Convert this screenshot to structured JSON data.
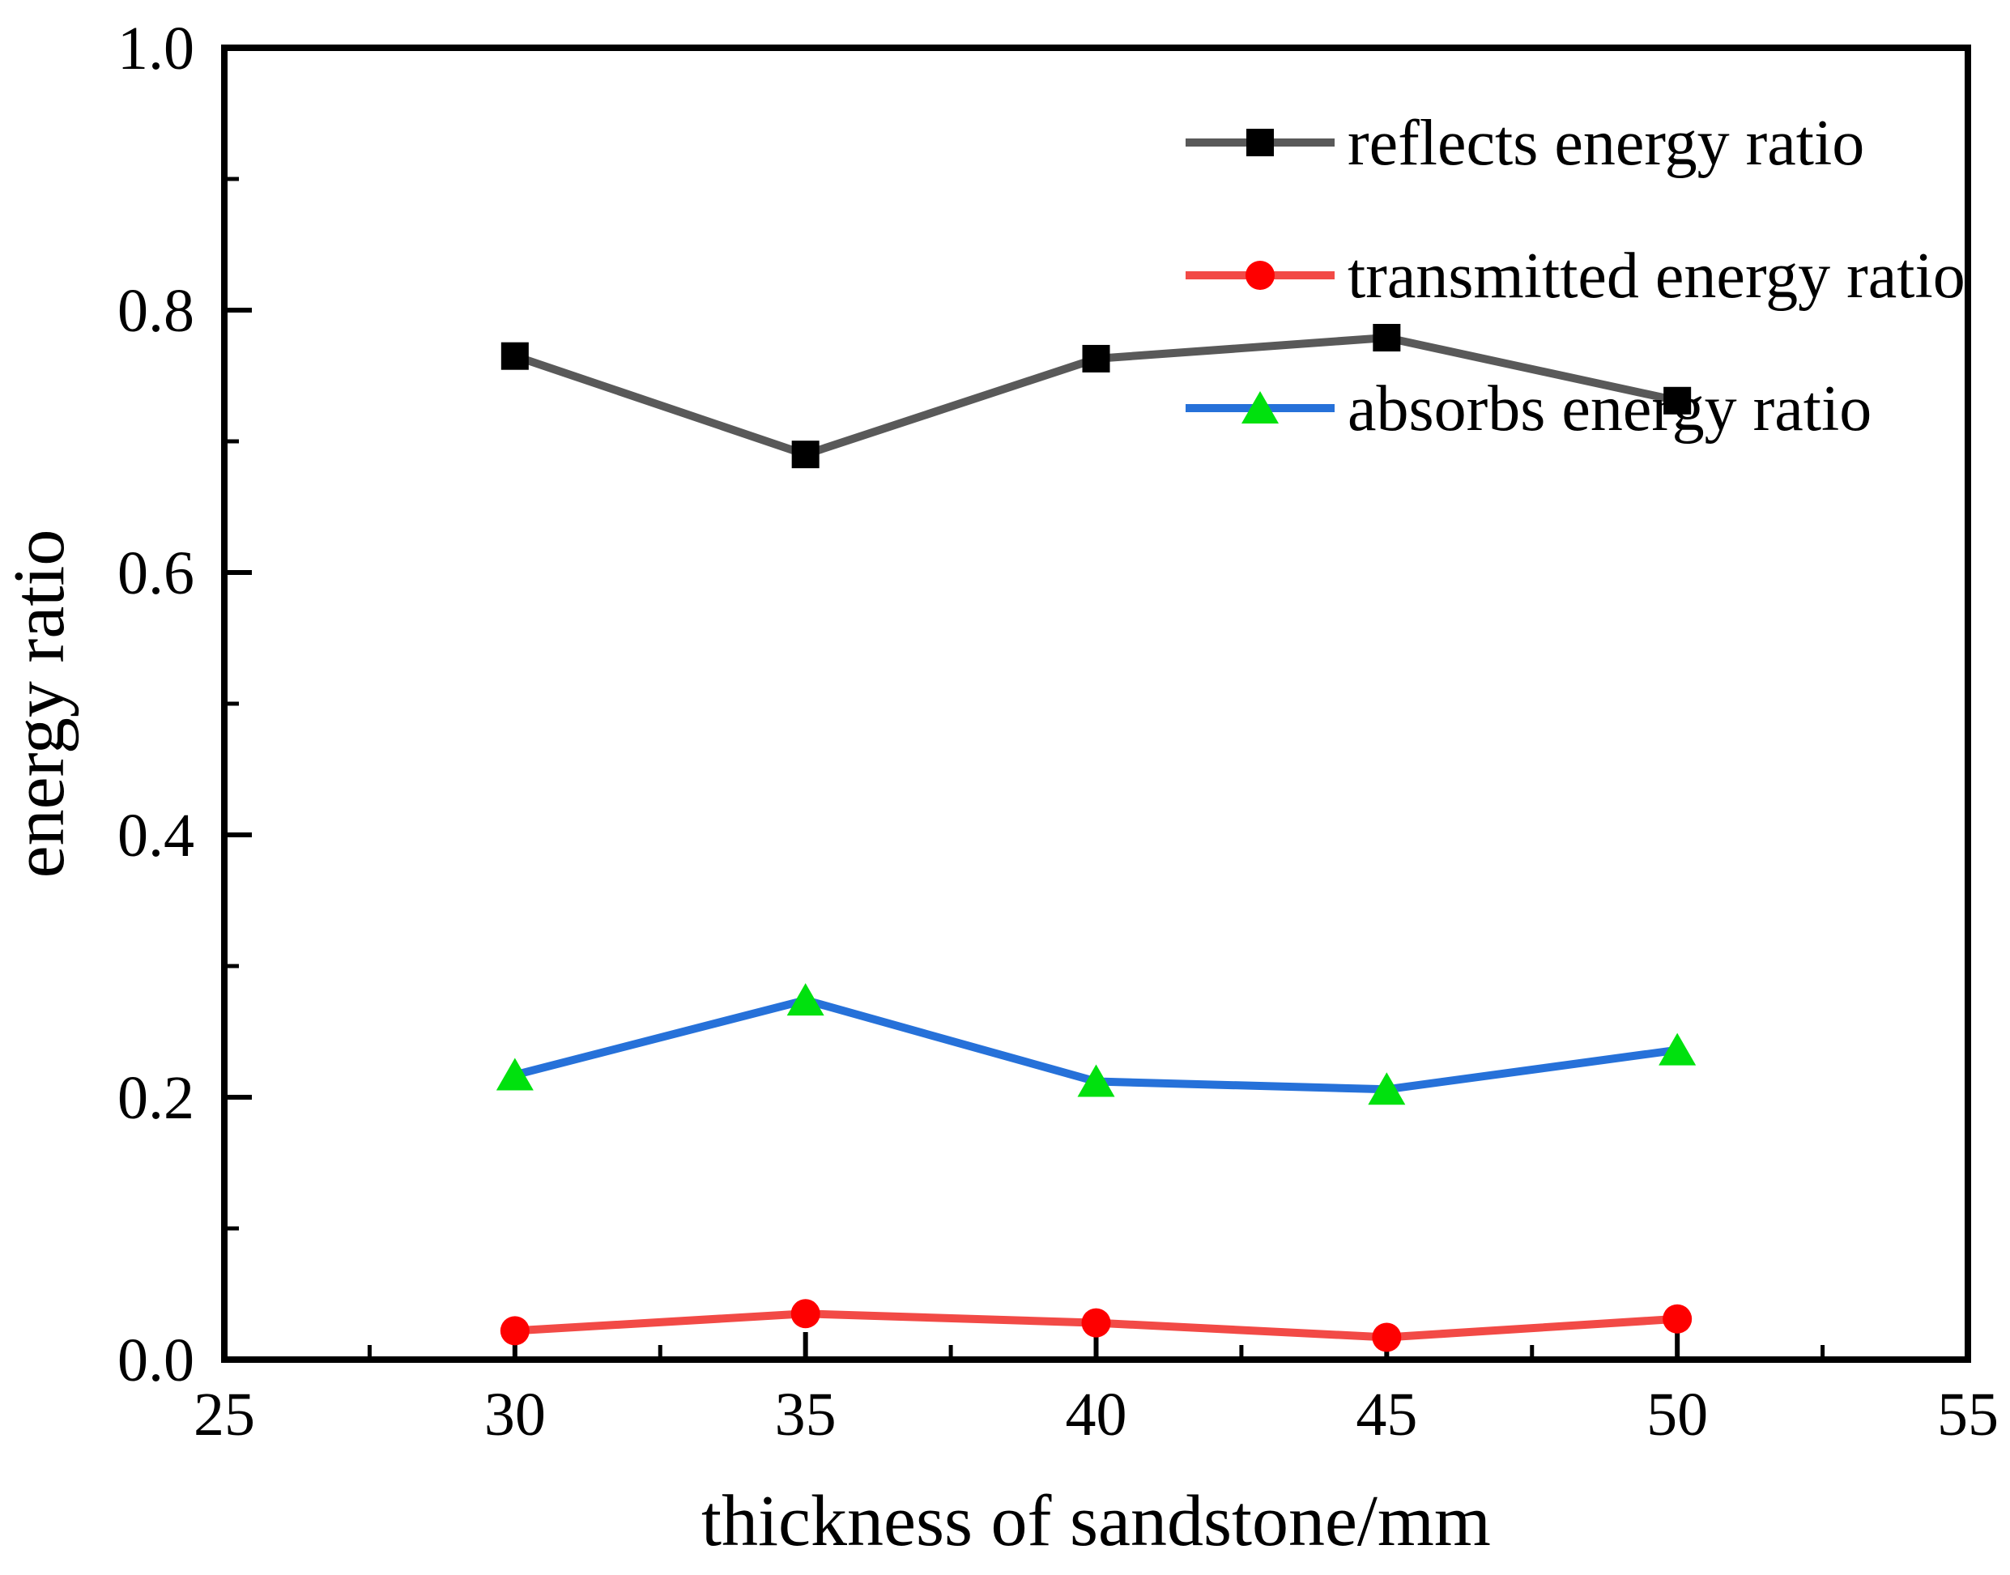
{
  "chart_data": {
    "type": "line",
    "title": "",
    "xlabel": "thickness of sandstone/mm",
    "ylabel": "energy ratio",
    "x": [
      30,
      35,
      40,
      45,
      50
    ],
    "xlim": [
      25,
      55
    ],
    "ylim": [
      0.0,
      1.0
    ],
    "x_major_ticks": [
      25,
      30,
      35,
      40,
      45,
      50,
      55
    ],
    "x_tick_labels": [
      "25",
      "30",
      "35",
      "40",
      "45",
      "50",
      "55"
    ],
    "x_minor_step": 2.5,
    "y_major_ticks": [
      0.0,
      0.2,
      0.4,
      0.6,
      0.8,
      1.0
    ],
    "y_tick_labels": [
      "0.0",
      "0.2",
      "0.4",
      "0.6",
      "0.8",
      "1.0"
    ],
    "y_minor_step": 0.1,
    "grid": false,
    "legend_position": "top-right-inside",
    "series": [
      {
        "name": "reflects energy ratio",
        "marker": "square",
        "marker_color": "#000000",
        "line_color": "#595959",
        "values": [
          0.765,
          0.69,
          0.763,
          0.779,
          0.731
        ]
      },
      {
        "name": "transmitted energy ratio",
        "marker": "circle",
        "marker_color": "#fe0000",
        "line_color": "#f24a46",
        "values": [
          0.022,
          0.035,
          0.028,
          0.017,
          0.031
        ]
      },
      {
        "name": "absorbs energy ratio",
        "marker": "triangle",
        "marker_color": "#00e10e",
        "line_color": "#2671d9",
        "values": [
          0.217,
          0.274,
          0.212,
          0.206,
          0.236
        ]
      }
    ]
  },
  "colors": {
    "background": "#ffffff",
    "axis": "#000000",
    "text": "#000000"
  }
}
